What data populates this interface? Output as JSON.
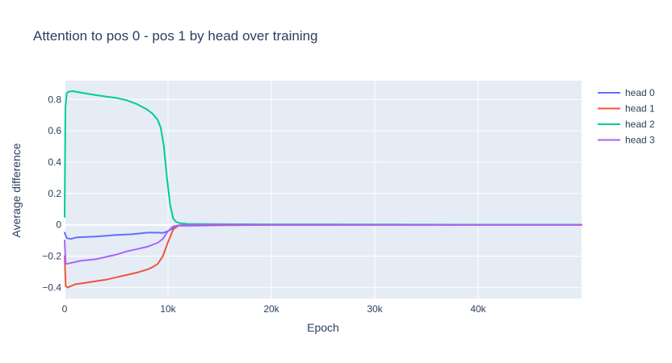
{
  "chart_data": {
    "type": "line",
    "title": "Attention to pos 0 - pos 1 by head over training",
    "xlabel": "Epoch",
    "ylabel": "Average difference",
    "xlim": [
      0,
      50000
    ],
    "ylim": [
      -0.47,
      0.92
    ],
    "xticks": [
      {
        "value": 0,
        "label": "0"
      },
      {
        "value": 10000,
        "label": "10k"
      },
      {
        "value": 20000,
        "label": "20k"
      },
      {
        "value": 30000,
        "label": "30k"
      },
      {
        "value": 40000,
        "label": "40k"
      }
    ],
    "yticks": [
      {
        "value": -0.4,
        "label": "−0.4"
      },
      {
        "value": -0.2,
        "label": "−0.2"
      },
      {
        "value": 0,
        "label": "0"
      },
      {
        "value": 0.2,
        "label": "0.2"
      },
      {
        "value": 0.4,
        "label": "0.4"
      },
      {
        "value": 0.6,
        "label": "0.6"
      },
      {
        "value": 0.8,
        "label": "0.8"
      }
    ],
    "grid": true,
    "legend_position": "top-right",
    "series": [
      {
        "name": "head 0",
        "color": "#636efa",
        "x": [
          0,
          200,
          600,
          1200,
          3000,
          5000,
          6500,
          8000,
          9000,
          9500,
          10000,
          10500,
          11000,
          12000,
          15000,
          20000,
          30000,
          40000,
          50000
        ],
        "y": [
          -0.05,
          -0.085,
          -0.09,
          -0.08,
          -0.075,
          -0.065,
          -0.06,
          -0.05,
          -0.05,
          -0.052,
          -0.04,
          -0.02,
          -0.005,
          -0.005,
          -0.003,
          -0.001,
          0,
          0,
          0
        ]
      },
      {
        "name": "head 1",
        "color": "#ef553b",
        "x": [
          0,
          100,
          300,
          1000,
          2000,
          3000,
          4000,
          5000,
          6000,
          7000,
          8000,
          8500,
          9000,
          9500,
          10000,
          10500,
          11000,
          12000,
          15000,
          20000,
          30000,
          40000,
          50000
        ],
        "y": [
          -0.2,
          -0.39,
          -0.4,
          -0.38,
          -0.37,
          -0.36,
          -0.35,
          -0.335,
          -0.32,
          -0.305,
          -0.285,
          -0.27,
          -0.25,
          -0.2,
          -0.11,
          -0.03,
          -0.005,
          0,
          0,
          0,
          0,
          0,
          0
        ]
      },
      {
        "name": "head 2",
        "color": "#00cc96",
        "x": [
          0,
          80,
          200,
          400,
          800,
          1500,
          3000,
          5000,
          6000,
          7000,
          8000,
          8500,
          9000,
          9300,
          9600,
          9900,
          10200,
          10500,
          10800,
          11200,
          12000,
          15000,
          20000,
          30000,
          40000,
          50000
        ],
        "y": [
          0.05,
          0.75,
          0.84,
          0.85,
          0.853,
          0.845,
          0.828,
          0.81,
          0.795,
          0.77,
          0.735,
          0.71,
          0.67,
          0.62,
          0.5,
          0.3,
          0.13,
          0.04,
          0.018,
          0.01,
          0.005,
          0.004,
          0.003,
          0.002,
          0.001,
          0.001
        ]
      },
      {
        "name": "head 3",
        "color": "#ab63fa",
        "x": [
          0,
          100,
          500,
          1500,
          3000,
          4000,
          5000,
          6000,
          7000,
          8000,
          9000,
          9500,
          10000,
          10500,
          11000,
          12000,
          15000,
          20000,
          30000,
          40000,
          50000
        ],
        "y": [
          -0.1,
          -0.25,
          -0.245,
          -0.23,
          -0.22,
          -0.205,
          -0.19,
          -0.17,
          -0.155,
          -0.14,
          -0.115,
          -0.09,
          -0.04,
          -0.01,
          -0.003,
          0,
          0.002,
          0,
          0,
          0,
          0
        ]
      }
    ]
  }
}
